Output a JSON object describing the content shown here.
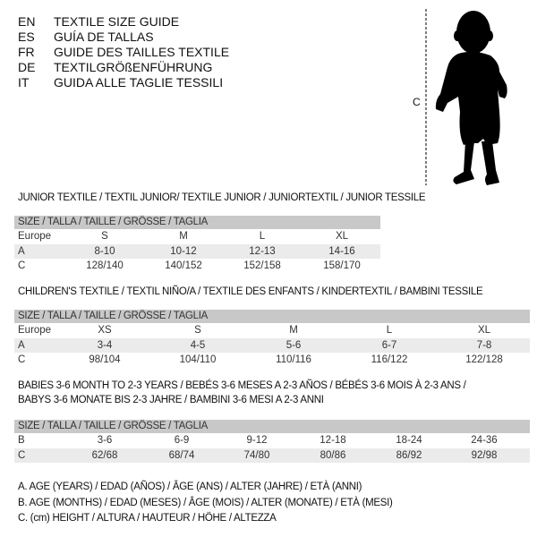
{
  "languages": [
    {
      "code": "EN",
      "text": "TEXTILE SIZE GUIDE"
    },
    {
      "code": "ES",
      "text": "GUÍA DE TALLAS"
    },
    {
      "code": "FR",
      "text": "GUIDE DES TAILLES TEXTILE"
    },
    {
      "code": "DE",
      "text": "TEXTILGRÖßENFÜHRUNG"
    },
    {
      "code": "IT",
      "text": "GUIDA ALLE TAGLIE TESSILI"
    }
  ],
  "figure": {
    "measure_label": "C",
    "icon": "toddler-silhouette"
  },
  "size_header": "SIZE / TALLA / TAILLE / GRÖSSE / TAGLIA",
  "tables": [
    {
      "title": "JUNIOR TEXTILE / TEXTIL JUNIOR/ TEXTILE JUNIOR / JUNIORTEXTIL / JUNIOR TESSILE",
      "rows": [
        {
          "label": "Europe",
          "values": [
            "S",
            "M",
            "L",
            "XL"
          ]
        },
        {
          "label": "A",
          "values": [
            "8-10",
            "10-12",
            "12-13",
            "14-16"
          ]
        },
        {
          "label": "C",
          "values": [
            "128/140",
            "140/152",
            "152/158",
            "158/170"
          ]
        }
      ]
    },
    {
      "title": "CHILDREN'S TEXTILE / TEXTIL NIÑO/A / TEXTILE DES ENFANTS / KINDERTEXTIL / BAMBINI TESSILE",
      "rows": [
        {
          "label": "Europe",
          "values": [
            "XS",
            "S",
            "M",
            "L",
            "XL"
          ]
        },
        {
          "label": "A",
          "values": [
            "3-4",
            "4-5",
            "5-6",
            "6-7",
            "7-8"
          ]
        },
        {
          "label": "C",
          "values": [
            "98/104",
            "104/110",
            "110/116",
            "116/122",
            "122/128"
          ]
        }
      ]
    },
    {
      "title": "BABIES 3-6 MONTH TO 2-3 YEARS / BEBÉS 3-6 MESES A 2-3 AÑOS / BÉBÉS 3-6 MOIS À 2-3 ANS /",
      "title2": "BABYS 3-6 MONATE BIS 2-3 JAHRE / BAMBINI 3-6 MESI A 2-3 ANNI",
      "rows": [
        {
          "label": "B",
          "values": [
            "3-6",
            "6-9",
            "9-12",
            "12-18",
            "18-24",
            "24-36"
          ]
        },
        {
          "label": "C",
          "values": [
            "62/68",
            "68/74",
            "74/80",
            "80/86",
            "86/92",
            "92/98"
          ]
        }
      ]
    }
  ],
  "legend": [
    "A. AGE (YEARS) / EDAD (AÑOS) / ÂGE (ANS) / ALTER (JAHRE) / ETÀ (ANNI)",
    "B. AGE (MONTHS) / EDAD (MESES) / ÂGE (MOIS) / ALTER (MONATE) / ETÀ (MESI)",
    "C. (cm) HEIGHT / ALTURA / HAUTEUR / HÖHE / ALTEZZA"
  ]
}
